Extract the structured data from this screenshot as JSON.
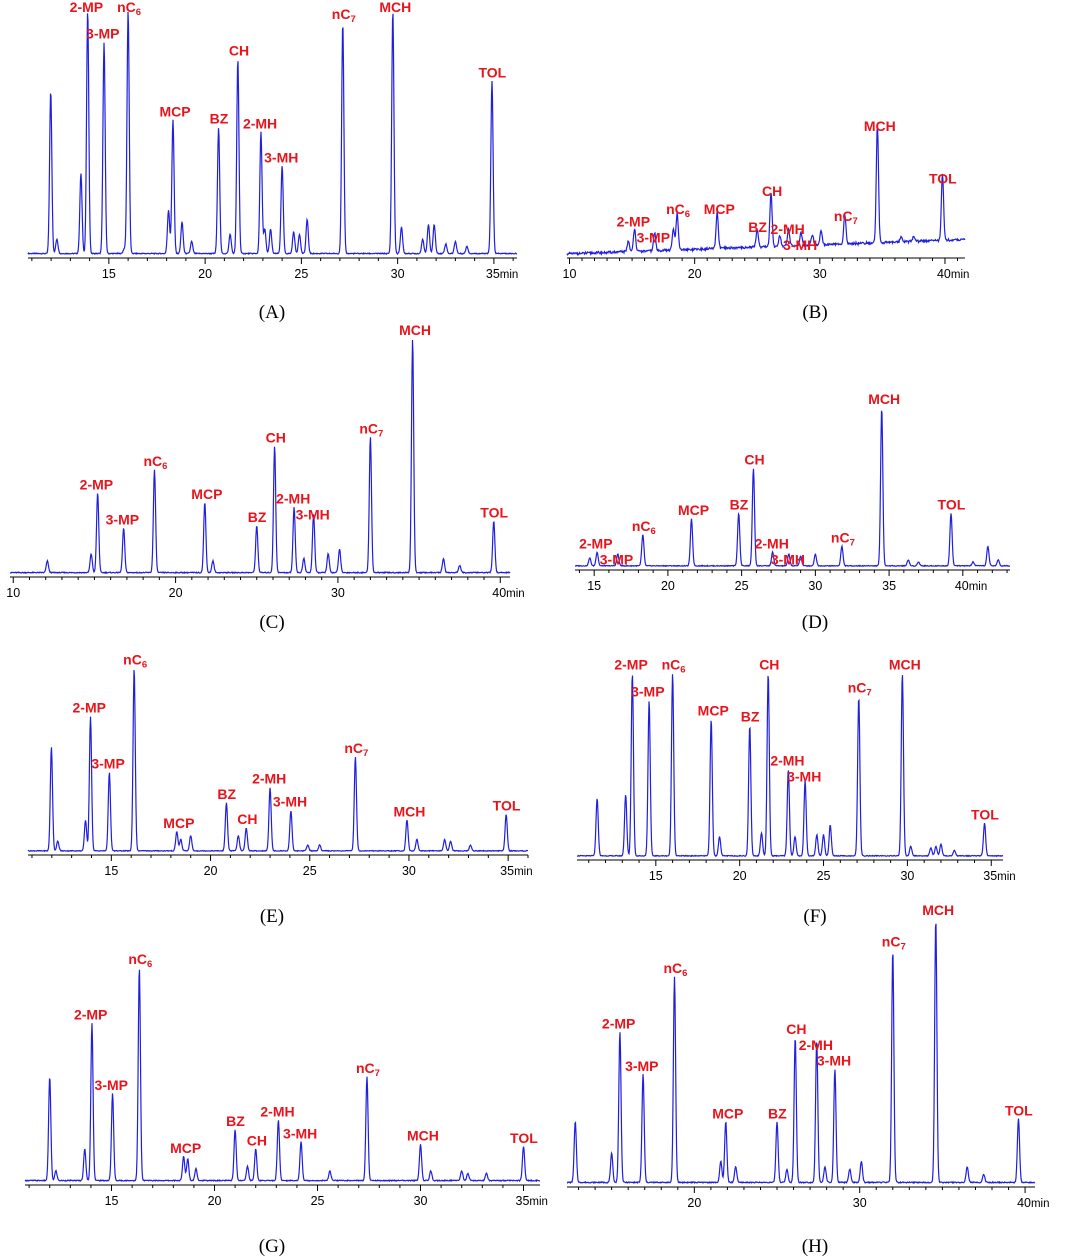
{
  "figure": {
    "accent_trace_color": "#1f1fdd",
    "accent_label_color": "#e8141c",
    "axis_color": "#000000"
  },
  "chart_data": [
    {
      "type": "line",
      "caption": "(A)",
      "x_unit": "min",
      "xlim": [
        10.8,
        36.2
      ],
      "ticks": [
        15,
        20,
        25,
        30,
        35
      ],
      "tick_labels": [
        "15",
        "20",
        "25",
        "30",
        "35min"
      ],
      "peaks": [
        {
          "t": 11.98,
          "h": 0.67
        },
        {
          "t": 12.3,
          "h": 0.06
        },
        {
          "t": 13.55,
          "h": 0.33
        },
        {
          "t": 13.9,
          "name": "2-MP",
          "h": 1.0
        },
        {
          "t": 14.75,
          "name": "3-MP",
          "h": 0.87
        },
        {
          "t": 15.8,
          "h": 0.02
        },
        {
          "t": 16.0,
          "name": "nC6",
          "h": 1.0
        },
        {
          "t": 18.1,
          "h": 0.18
        },
        {
          "t": 18.33,
          "name": "MCP",
          "h": 0.55
        },
        {
          "t": 18.8,
          "h": 0.13
        },
        {
          "t": 19.3,
          "h": 0.05
        },
        {
          "t": 20.7,
          "name": "BZ",
          "h": 0.52
        },
        {
          "t": 21.3,
          "h": 0.08
        },
        {
          "t": 21.7,
          "name": "CH",
          "h": 0.8
        },
        {
          "t": 22.9,
          "name": "2-MH",
          "h": 0.5
        },
        {
          "t": 23.1,
          "h": 0.1
        },
        {
          "t": 23.4,
          "h": 0.1
        },
        {
          "t": 24.0,
          "name": "3-MH",
          "h": 0.36
        },
        {
          "t": 24.6,
          "h": 0.09
        },
        {
          "t": 24.9,
          "h": 0.08
        },
        {
          "t": 25.3,
          "h": 0.14
        },
        {
          "t": 27.15,
          "name": "nC7",
          "h": 0.95
        },
        {
          "t": 29.75,
          "name": "MCH",
          "h": 1.0
        },
        {
          "t": 30.2,
          "h": 0.11
        },
        {
          "t": 31.3,
          "h": 0.06
        },
        {
          "t": 31.6,
          "h": 0.12
        },
        {
          "t": 31.9,
          "h": 0.12
        },
        {
          "t": 32.5,
          "h": 0.04
        },
        {
          "t": 33.0,
          "h": 0.05
        },
        {
          "t": 33.6,
          "h": 0.03
        },
        {
          "t": 34.9,
          "name": "TOL",
          "h": 0.71
        }
      ]
    },
    {
      "type": "line",
      "caption": "(B)",
      "x_unit": "min",
      "xlim": [
        9.8,
        41.6
      ],
      "ticks": [
        10,
        20,
        30,
        40
      ],
      "tick_labels": [
        "10",
        "20",
        "30",
        "40min"
      ],
      "peaks": [
        {
          "t": 14.7,
          "h": 0.06
        },
        {
          "t": 15.2,
          "name": "2-MP",
          "h": 0.13
        },
        {
          "t": 16.8,
          "name": "3-MP",
          "h": 0.1
        },
        {
          "t": 18.3,
          "h": 0.12
        },
        {
          "t": 18.6,
          "name": "nC6",
          "h": 0.2
        },
        {
          "t": 21.8,
          "name": "MCP",
          "h": 0.2
        },
        {
          "t": 25.0,
          "name": "BZ",
          "h": 0.1
        },
        {
          "t": 26.1,
          "name": "CH",
          "h": 0.3
        },
        {
          "t": 26.8,
          "h": 0.06
        },
        {
          "t": 27.5,
          "name": "2-MH",
          "h": 0.09
        },
        {
          "t": 28.5,
          "name": "3-MH",
          "h": 0.07
        },
        {
          "t": 29.4,
          "h": 0.06
        },
        {
          "t": 30.1,
          "h": 0.08
        },
        {
          "t": 32.0,
          "name": "nC7",
          "h": 0.16
        },
        {
          "t": 34.6,
          "name": "MCH",
          "h": 0.66
        },
        {
          "t": 36.5,
          "h": 0.03
        },
        {
          "t": 37.5,
          "h": 0.03
        },
        {
          "t": 39.8,
          "name": "TOL",
          "h": 0.37
        }
      ]
    },
    {
      "type": "line",
      "caption": "(C)",
      "x_unit": "min",
      "xlim": [
        9.8,
        40.6
      ],
      "ticks": [
        10,
        20,
        30,
        40
      ],
      "tick_labels": [
        "10",
        "20",
        "30",
        "40min"
      ],
      "peaks": [
        {
          "t": 12.1,
          "h": 0.05
        },
        {
          "t": 14.8,
          "h": 0.08
        },
        {
          "t": 15.2,
          "name": "2-MP",
          "h": 0.34
        },
        {
          "t": 16.8,
          "name": "3-MP",
          "h": 0.19
        },
        {
          "t": 18.7,
          "name": "nC6",
          "h": 0.44
        },
        {
          "t": 21.8,
          "name": "MCP",
          "h": 0.3
        },
        {
          "t": 22.3,
          "h": 0.05
        },
        {
          "t": 25.0,
          "name": "BZ",
          "h": 0.2
        },
        {
          "t": 26.1,
          "name": "CH",
          "h": 0.54
        },
        {
          "t": 27.3,
          "name": "2-MH",
          "h": 0.28
        },
        {
          "t": 27.9,
          "h": 0.06
        },
        {
          "t": 28.5,
          "name": "3-MH",
          "h": 0.25
        },
        {
          "t": 29.4,
          "h": 0.08
        },
        {
          "t": 30.1,
          "h": 0.1
        },
        {
          "t": 32.0,
          "name": "nC7",
          "h": 0.58
        },
        {
          "t": 34.6,
          "name": "MCH",
          "h": 1.0
        },
        {
          "t": 36.5,
          "h": 0.06
        },
        {
          "t": 37.5,
          "h": 0.03
        },
        {
          "t": 39.6,
          "name": "TOL",
          "h": 0.22
        }
      ]
    },
    {
      "type": "line",
      "caption": "(D)",
      "x_unit": "min",
      "xlim": [
        13.7,
        43.2
      ],
      "ticks": [
        15,
        20,
        25,
        30,
        35,
        40
      ],
      "tick_labels": [
        "15",
        "20",
        "25",
        "30",
        "35",
        "40min"
      ],
      "peaks": [
        {
          "t": 14.7,
          "h": 0.04
        },
        {
          "t": 15.2,
          "name": "2-MP",
          "h": 0.07
        },
        {
          "t": 16.6,
          "name": "3-MP",
          "h": 0.06
        },
        {
          "t": 18.3,
          "name": "nC6",
          "h": 0.16
        },
        {
          "t": 21.6,
          "name": "MCP",
          "h": 0.24
        },
        {
          "t": 24.8,
          "name": "BZ",
          "h": 0.27
        },
        {
          "t": 25.8,
          "name": "CH",
          "h": 0.5
        },
        {
          "t": 27.1,
          "name": "2-MH",
          "h": 0.07
        },
        {
          "t": 28.2,
          "name": "3-MH",
          "h": 0.06
        },
        {
          "t": 29.0,
          "h": 0.05
        },
        {
          "t": 30.0,
          "h": 0.06
        },
        {
          "t": 31.8,
          "name": "nC7",
          "h": 0.1
        },
        {
          "t": 34.5,
          "name": "MCH",
          "h": 0.81
        },
        {
          "t": 36.3,
          "h": 0.03
        },
        {
          "t": 37.0,
          "h": 0.02
        },
        {
          "t": 39.2,
          "name": "TOL",
          "h": 0.27
        },
        {
          "t": 40.7,
          "h": 0.02
        },
        {
          "t": 41.7,
          "h": 0.1
        },
        {
          "t": 42.4,
          "h": 0.03
        }
      ]
    },
    {
      "type": "line",
      "caption": "(E)",
      "x_unit": "min",
      "xlim": [
        10.8,
        36.0
      ],
      "ticks": [
        15,
        20,
        25,
        30,
        35
      ],
      "tick_labels": [
        "15",
        "20",
        "25",
        "30",
        "35min"
      ],
      "peaks": [
        {
          "t": 11.98,
          "h": 0.54
        },
        {
          "t": 12.3,
          "h": 0.05
        },
        {
          "t": 13.7,
          "h": 0.16
        },
        {
          "t": 13.95,
          "name": "2-MP",
          "h": 0.7
        },
        {
          "t": 14.9,
          "name": "3-MP",
          "h": 0.41
        },
        {
          "t": 16.15,
          "name": "nC6",
          "h": 0.95
        },
        {
          "t": 18.3,
          "name": "MCP",
          "h": 0.1
        },
        {
          "t": 18.5,
          "h": 0.06
        },
        {
          "t": 19.0,
          "h": 0.08
        },
        {
          "t": 20.8,
          "name": "BZ",
          "h": 0.25
        },
        {
          "t": 21.4,
          "h": 0.08
        },
        {
          "t": 21.8,
          "name": "CH",
          "h": 0.12
        },
        {
          "t": 23.0,
          "name": "2-MH",
          "h": 0.33
        },
        {
          "t": 24.05,
          "name": "3-MH",
          "h": 0.21
        },
        {
          "t": 24.9,
          "h": 0.03
        },
        {
          "t": 25.5,
          "h": 0.03
        },
        {
          "t": 27.3,
          "name": "nC7",
          "h": 0.49
        },
        {
          "t": 29.9,
          "name": "MCH",
          "h": 0.16
        },
        {
          "t": 30.4,
          "h": 0.06
        },
        {
          "t": 31.8,
          "h": 0.06
        },
        {
          "t": 32.1,
          "h": 0.05
        },
        {
          "t": 33.1,
          "h": 0.03
        },
        {
          "t": 34.9,
          "name": "TOL",
          "h": 0.19
        }
      ]
    },
    {
      "type": "line",
      "caption": "(F)",
      "x_unit": "min",
      "xlim": [
        10.3,
        35.7
      ],
      "ticks": [
        15,
        20,
        25,
        30,
        35
      ],
      "tick_labels": [
        "15",
        "20",
        "25",
        "30",
        "35min"
      ],
      "peaks": [
        {
          "t": 11.5,
          "h": 0.3
        },
        {
          "t": 13.2,
          "h": 0.32
        },
        {
          "t": 13.6,
          "name": "2-MP",
          "h": 0.95
        },
        {
          "t": 14.6,
          "name": "3-MP",
          "h": 0.81
        },
        {
          "t": 16.0,
          "name": "nC6",
          "h": 0.95
        },
        {
          "t": 18.3,
          "name": "MCP",
          "h": 0.71
        },
        {
          "t": 18.8,
          "h": 0.1
        },
        {
          "t": 20.6,
          "name": "BZ",
          "h": 0.68
        },
        {
          "t": 21.3,
          "h": 0.12
        },
        {
          "t": 21.7,
          "name": "CH",
          "h": 0.95
        },
        {
          "t": 22.9,
          "name": "2-MH",
          "h": 0.45
        },
        {
          "t": 23.3,
          "h": 0.1
        },
        {
          "t": 23.9,
          "name": "3-MH",
          "h": 0.39
        },
        {
          "t": 24.6,
          "h": 0.11
        },
        {
          "t": 25.0,
          "h": 0.11
        },
        {
          "t": 25.4,
          "h": 0.16
        },
        {
          "t": 27.1,
          "name": "nC7",
          "h": 0.83
        },
        {
          "t": 29.7,
          "name": "MCH",
          "h": 0.95
        },
        {
          "t": 30.2,
          "h": 0.05
        },
        {
          "t": 31.4,
          "h": 0.04
        },
        {
          "t": 31.7,
          "h": 0.05
        },
        {
          "t": 32.0,
          "h": 0.06
        },
        {
          "t": 32.8,
          "h": 0.03
        },
        {
          "t": 34.6,
          "name": "TOL",
          "h": 0.17
        }
      ]
    },
    {
      "type": "line",
      "caption": "(G)",
      "x_unit": "min",
      "xlim": [
        10.8,
        35.8
      ],
      "ticks": [
        15,
        20,
        25,
        30,
        35
      ],
      "tick_labels": [
        "15",
        "20",
        "25",
        "30",
        "35min"
      ],
      "peaks": [
        {
          "t": 12.0,
          "h": 0.43
        },
        {
          "t": 12.3,
          "h": 0.04
        },
        {
          "t": 13.7,
          "h": 0.13
        },
        {
          "t": 14.05,
          "name": "2-MP",
          "h": 0.65
        },
        {
          "t": 15.05,
          "name": "3-MP",
          "h": 0.36
        },
        {
          "t": 16.35,
          "name": "nC6",
          "h": 0.88
        },
        {
          "t": 18.5,
          "name": "MCP",
          "h": 0.1
        },
        {
          "t": 18.7,
          "h": 0.09
        },
        {
          "t": 19.1,
          "h": 0.05
        },
        {
          "t": 21.0,
          "name": "BZ",
          "h": 0.21
        },
        {
          "t": 21.6,
          "h": 0.06
        },
        {
          "t": 22.0,
          "name": "CH",
          "h": 0.13
        },
        {
          "t": 23.1,
          "name": "2-MH",
          "h": 0.25
        },
        {
          "t": 24.2,
          "name": "3-MH",
          "h": 0.16
        },
        {
          "t": 25.6,
          "h": 0.04
        },
        {
          "t": 27.4,
          "name": "nC7",
          "h": 0.43
        },
        {
          "t": 30.0,
          "name": "MCH",
          "h": 0.15
        },
        {
          "t": 30.5,
          "h": 0.04
        },
        {
          "t": 32.0,
          "h": 0.04
        },
        {
          "t": 32.3,
          "h": 0.03
        },
        {
          "t": 33.2,
          "h": 0.03
        },
        {
          "t": 35.0,
          "name": "TOL",
          "h": 0.14
        }
      ]
    },
    {
      "type": "line",
      "caption": "(H)",
      "x_unit": "min",
      "xlim": [
        12.3,
        40.6
      ],
      "ticks": [
        20,
        30,
        40
      ],
      "tick_labels": [
        "20",
        "30",
        "40min"
      ],
      "peaks": [
        {
          "t": 12.8,
          "h": 0.23
        },
        {
          "t": 15.0,
          "h": 0.11
        },
        {
          "t": 15.5,
          "name": "2-MP",
          "h": 0.57
        },
        {
          "t": 16.9,
          "name": "3-MP",
          "h": 0.41
        },
        {
          "t": 18.8,
          "name": "nC6",
          "h": 0.78
        },
        {
          "t": 21.6,
          "h": 0.08
        },
        {
          "t": 21.9,
          "name": "MCP",
          "h": 0.23
        },
        {
          "t": 22.5,
          "h": 0.06
        },
        {
          "t": 25.0,
          "name": "BZ",
          "h": 0.23
        },
        {
          "t": 25.6,
          "h": 0.05
        },
        {
          "t": 26.1,
          "name": "CH",
          "h": 0.55
        },
        {
          "t": 27.4,
          "name": "2-MH",
          "h": 0.54
        },
        {
          "t": 27.9,
          "h": 0.06
        },
        {
          "t": 28.5,
          "name": "3-MH",
          "h": 0.43
        },
        {
          "t": 29.4,
          "h": 0.05
        },
        {
          "t": 30.1,
          "h": 0.08
        },
        {
          "t": 32.0,
          "name": "nC7",
          "h": 0.88
        },
        {
          "t": 34.6,
          "name": "MCH",
          "h": 1.0
        },
        {
          "t": 36.5,
          "h": 0.06
        },
        {
          "t": 37.5,
          "h": 0.03
        },
        {
          "t": 39.6,
          "name": "TOL",
          "h": 0.24
        }
      ]
    }
  ],
  "labels": {
    "2-MP": "2-MP",
    "3-MP": "3-MP",
    "nC6": "nC",
    "nC6_sub": "6",
    "MCP": "MCP",
    "BZ": "BZ",
    "CH": "CH",
    "2-MH": "2-MH",
    "3-MH": "3-MH",
    "nC7": "nC",
    "nC7_sub": "7",
    "MCH": "MCH",
    "TOL": "TOL"
  }
}
